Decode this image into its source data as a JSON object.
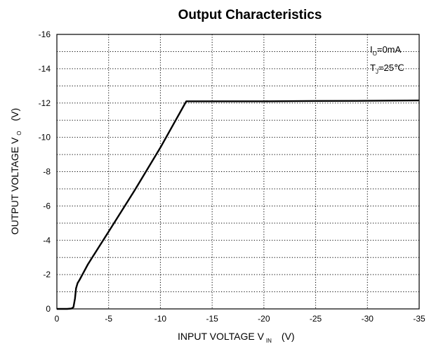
{
  "chart_data": {
    "type": "line",
    "title": "Output  Characteristics",
    "xlabel": "INPUT VOLTAGE  V",
    "xlabel_sub": "IN",
    "xlabel_unit": "(V)",
    "ylabel": "OUTPUT VOLTAGE  V",
    "ylabel_sub": "O",
    "ylabel_unit": "(V)",
    "xlim": [
      0,
      -35
    ],
    "ylim": [
      0,
      -16
    ],
    "xticks": [
      0,
      -5,
      -10,
      -15,
      -20,
      -25,
      -30,
      -35
    ],
    "xtick_labels": [
      "0",
      "-5",
      "-10",
      "-15",
      "-20",
      "-25",
      "-30",
      "-35"
    ],
    "yticks": [
      0,
      -2,
      -4,
      -6,
      -8,
      -10,
      -12,
      -14,
      -16
    ],
    "ytick_labels": [
      "0",
      "-2",
      "-4",
      "-6",
      "-8",
      "-10",
      "-12",
      "-14",
      "-16"
    ],
    "minor_y_step": -1,
    "grid": true,
    "annotations": [
      {
        "text": "I",
        "sub": "O",
        "rest": "=0mA"
      },
      {
        "text": "T",
        "sub": "J",
        "rest": "=25℃"
      }
    ],
    "series": [
      {
        "x": [
          0,
          -1.0,
          -1.4,
          -1.6,
          -1.75,
          -1.85,
          -2.0,
          -2.2,
          -3.0,
          -5.0,
          -7.5,
          -10.0,
          -12.5,
          -15,
          -20,
          -25,
          -30,
          -35
        ],
        "y": [
          0,
          0,
          -0.02,
          -0.1,
          -0.6,
          -1.2,
          -1.5,
          -1.7,
          -2.6,
          -4.5,
          -6.9,
          -9.4,
          -12.1,
          -12.1,
          -12.1,
          -12.12,
          -12.13,
          -12.15
        ]
      }
    ]
  }
}
